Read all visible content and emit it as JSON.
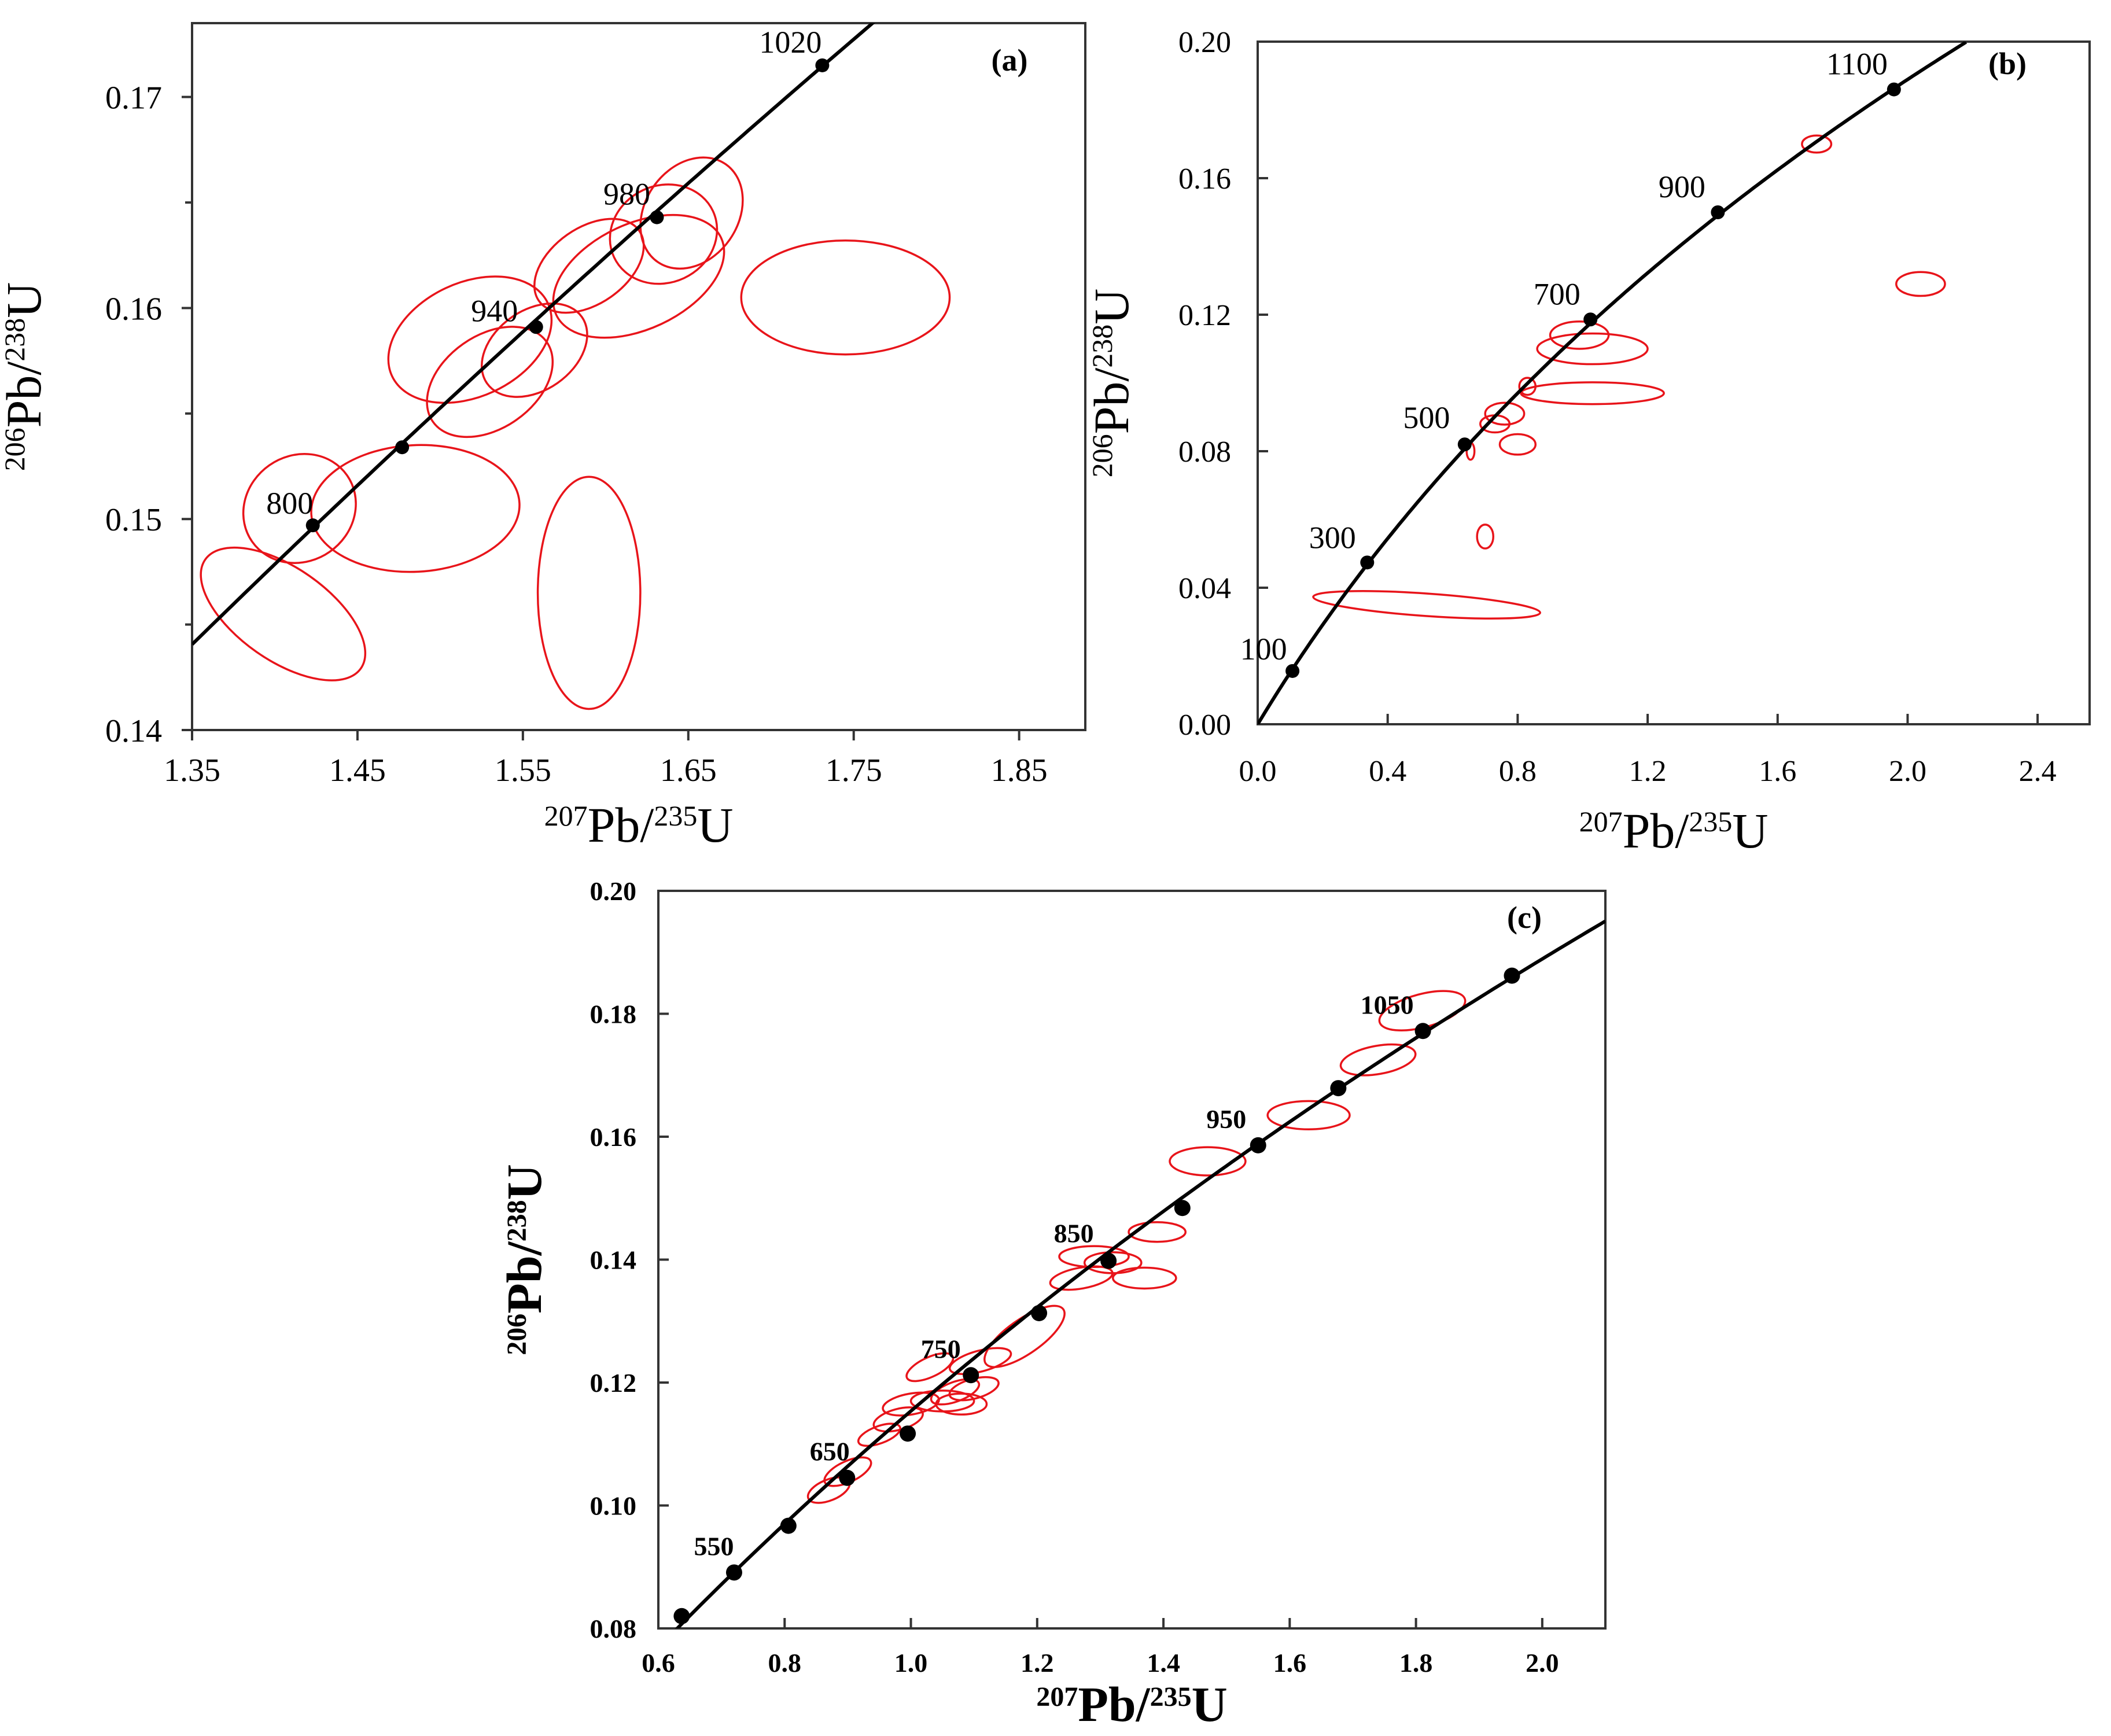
{
  "figure": {
    "panel_labels": [
      "(a)",
      "(b)",
      "(c)"
    ]
  },
  "colors": {
    "ellipse": "#e8141a",
    "concordia": "#000000",
    "axis": "#333333"
  },
  "chart_data": [
    {
      "type": "scatter",
      "panel_label": "(a)",
      "title": "",
      "xlabel": {
        "sup1": "207",
        "base1": "Pb/",
        "sup2": "235",
        "base2": "U"
      },
      "ylabel": {
        "sup1": "206",
        "base1": "Pb/",
        "sup2": "238",
        "base2": "U"
      },
      "xlim": [
        1.35,
        1.89
      ],
      "ylim": [
        0.14,
        0.1735
      ],
      "x_ticks": [
        1.35,
        1.45,
        1.55,
        1.65,
        1.75,
        1.85
      ],
      "x_tick_labels": [
        "1.35",
        "1.45",
        "1.55",
        "1.65",
        "1.75",
        "1.85"
      ],
      "y_ticks": [
        0.14,
        0.15,
        0.16,
        0.17
      ],
      "y_tick_labels": [
        "0.14",
        "0.15",
        "0.16",
        "0.17"
      ],
      "minor_y_ticks": [
        0.145,
        0.155,
        0.165
      ],
      "concordia_range_x": [
        1.35,
        1.78
      ],
      "age_markers": [
        {
          "x": 1.423,
          "y": 0.1497,
          "label": "800"
        },
        {
          "x": 1.477,
          "y": 0.1534,
          "label": ""
        },
        {
          "x": 1.558,
          "y": 0.1591,
          "label": "940"
        },
        {
          "x": 1.631,
          "y": 0.1643,
          "label": "980"
        },
        {
          "x": 1.731,
          "y": 0.1715,
          "label": "1020"
        }
      ],
      "ellipses": [
        {
          "cx": 1.415,
          "cy": 0.1505,
          "rx": 0.035,
          "ry": 0.0025,
          "angle_deg": 35
        },
        {
          "cx": 1.405,
          "cy": 0.1455,
          "rx": 0.028,
          "ry": 0.0045,
          "angle_deg": 55
        },
        {
          "cx": 1.485,
          "cy": 0.1505,
          "rx": 0.063,
          "ry": 0.003,
          "angle_deg": 3
        },
        {
          "cx": 1.59,
          "cy": 0.1465,
          "rx": 0.031,
          "ry": 0.0055,
          "angle_deg": 0
        },
        {
          "cx": 1.518,
          "cy": 0.1585,
          "rx": 0.052,
          "ry": 0.0027,
          "angle_deg": 25
        },
        {
          "cx": 1.53,
          "cy": 0.1565,
          "rx": 0.042,
          "ry": 0.0022,
          "angle_deg": 35
        },
        {
          "cx": 1.557,
          "cy": 0.158,
          "rx": 0.035,
          "ry": 0.0019,
          "angle_deg": 35
        },
        {
          "cx": 1.59,
          "cy": 0.162,
          "rx": 0.037,
          "ry": 0.0018,
          "angle_deg": 35
        },
        {
          "cx": 1.62,
          "cy": 0.1615,
          "rx": 0.055,
          "ry": 0.0025,
          "angle_deg": 25
        },
        {
          "cx": 1.635,
          "cy": 0.1635,
          "rx": 0.033,
          "ry": 0.0023,
          "angle_deg": 25
        },
        {
          "cx": 1.652,
          "cy": 0.1645,
          "rx": 0.036,
          "ry": 0.0022,
          "angle_deg": 55
        },
        {
          "cx": 1.745,
          "cy": 0.1605,
          "rx": 0.063,
          "ry": 0.0027,
          "angle_deg": 0
        }
      ]
    },
    {
      "type": "scatter",
      "panel_label": "(b)",
      "title": "",
      "xlabel": {
        "sup1": "207",
        "base1": "Pb/",
        "sup2": "235",
        "base2": "U"
      },
      "ylabel": {
        "sup1": "206",
        "base1": "Pb/",
        "sup2": "238",
        "base2": "U"
      },
      "xlim": [
        0.0,
        2.56
      ],
      "ylim": [
        0.0,
        0.2
      ],
      "x_ticks": [
        0.0,
        0.4,
        0.8,
        1.2,
        1.6,
        2.0,
        2.4
      ],
      "x_tick_labels": [
        "0.0",
        "0.4",
        "0.8",
        "1.2",
        "1.6",
        "2.0",
        "2.4"
      ],
      "y_ticks": [
        0.0,
        0.04,
        0.08,
        0.12,
        0.16,
        0.2
      ],
      "y_tick_labels": [
        "0.00",
        "0.04",
        "0.08",
        "0.12",
        "0.16",
        "0.20"
      ],
      "concordia_range_x": [
        0.0,
        2.18
      ],
      "age_markers": [
        {
          "x": 0.107,
          "y": 0.0156,
          "label": "100"
        },
        {
          "x": 0.337,
          "y": 0.0474,
          "label": "300"
        },
        {
          "x": 0.637,
          "y": 0.082,
          "label": "500"
        },
        {
          "x": 1.024,
          "y": 0.1186,
          "label": "700"
        },
        {
          "x": 1.416,
          "y": 0.15,
          "label": "900"
        },
        {
          "x": 1.958,
          "y": 0.186,
          "label": "1100"
        }
      ],
      "ellipses": [
        {
          "cx": 0.52,
          "cy": 0.035,
          "rx": 0.35,
          "ry": 0.0033,
          "angle_deg": -4
        },
        {
          "cx": 0.7,
          "cy": 0.055,
          "rx": 0.025,
          "ry": 0.0035,
          "angle_deg": 0
        },
        {
          "cx": 0.655,
          "cy": 0.08,
          "rx": 0.012,
          "ry": 0.0025,
          "angle_deg": 0
        },
        {
          "cx": 0.8,
          "cy": 0.082,
          "rx": 0.055,
          "ry": 0.003,
          "angle_deg": 0
        },
        {
          "cx": 0.73,
          "cy": 0.088,
          "rx": 0.045,
          "ry": 0.0025,
          "angle_deg": 0
        },
        {
          "cx": 0.76,
          "cy": 0.091,
          "rx": 0.06,
          "ry": 0.0032,
          "angle_deg": 0
        },
        {
          "cx": 0.83,
          "cy": 0.099,
          "rx": 0.025,
          "ry": 0.0025,
          "angle_deg": 0
        },
        {
          "cx": 1.03,
          "cy": 0.097,
          "rx": 0.22,
          "ry": 0.0032,
          "angle_deg": 0
        },
        {
          "cx": 1.03,
          "cy": 0.11,
          "rx": 0.17,
          "ry": 0.0045,
          "angle_deg": 0
        },
        {
          "cx": 0.99,
          "cy": 0.114,
          "rx": 0.09,
          "ry": 0.004,
          "angle_deg": 0
        },
        {
          "cx": 1.72,
          "cy": 0.17,
          "rx": 0.045,
          "ry": 0.0025,
          "angle_deg": 0
        },
        {
          "cx": 2.04,
          "cy": 0.129,
          "rx": 0.075,
          "ry": 0.0035,
          "angle_deg": 0
        }
      ]
    },
    {
      "type": "scatter",
      "panel_label": "(c)",
      "title": "",
      "xlabel": {
        "sup1": "207",
        "base1": "Pb/",
        "sup2": "235",
        "base2": "U"
      },
      "ylabel": {
        "sup1": "206",
        "base1": "Pb/",
        "sup2": "238",
        "base2": "U"
      },
      "xlim": [
        0.6,
        2.1
      ],
      "ylim": [
        0.08,
        0.2
      ],
      "x_ticks": [
        0.6,
        0.8,
        1.0,
        1.2,
        1.4,
        1.6,
        1.8,
        2.0
      ],
      "x_tick_labels": [
        "0.6",
        "0.8",
        "1.0",
        "1.2",
        "1.4",
        "1.6",
        "1.8",
        "2.0"
      ],
      "y_ticks": [
        0.08,
        0.1,
        0.12,
        0.14,
        0.16,
        0.18,
        0.2
      ],
      "y_tick_labels": [
        "0.08",
        "0.10",
        "0.12",
        "0.14",
        "0.16",
        "0.18",
        "0.20"
      ],
      "concordia_range_x": [
        0.6,
        2.1
      ],
      "age_markers": [
        {
          "x": 0.637,
          "y": 0.082,
          "label": ""
        },
        {
          "x": 0.72,
          "y": 0.0891,
          "label": "550"
        },
        {
          "x": 0.806,
          "y": 0.0967,
          "label": ""
        },
        {
          "x": 0.899,
          "y": 0.1045,
          "label": "650"
        },
        {
          "x": 0.995,
          "y": 0.1117,
          "label": ""
        },
        {
          "x": 1.095,
          "y": 0.1212,
          "label": "750"
        },
        {
          "x": 1.203,
          "y": 0.1313,
          "label": ""
        },
        {
          "x": 1.313,
          "y": 0.1398,
          "label": "850"
        },
        {
          "x": 1.43,
          "y": 0.1484,
          "label": ""
        },
        {
          "x": 1.55,
          "y": 0.1586,
          "label": "950"
        },
        {
          "x": 1.677,
          "y": 0.1679,
          "label": ""
        },
        {
          "x": 1.811,
          "y": 0.1772,
          "label": "1050"
        },
        {
          "x": 1.952,
          "y": 0.1862,
          "label": ""
        }
      ],
      "ellipses": [
        {
          "cx": 0.87,
          "cy": 0.1025,
          "rx": 0.035,
          "ry": 0.0017,
          "angle_deg": 22
        },
        {
          "cx": 0.9,
          "cy": 0.1055,
          "rx": 0.04,
          "ry": 0.0017,
          "angle_deg": 25
        },
        {
          "cx": 0.95,
          "cy": 0.1115,
          "rx": 0.035,
          "ry": 0.0014,
          "angle_deg": 20
        },
        {
          "cx": 0.98,
          "cy": 0.114,
          "rx": 0.04,
          "ry": 0.0017,
          "angle_deg": 15
        },
        {
          "cx": 1.0,
          "cy": 0.1165,
          "rx": 0.045,
          "ry": 0.0017,
          "angle_deg": 10
        },
        {
          "cx": 1.05,
          "cy": 0.117,
          "rx": 0.05,
          "ry": 0.0017,
          "angle_deg": 0
        },
        {
          "cx": 1.07,
          "cy": 0.1185,
          "rx": 0.04,
          "ry": 0.0016,
          "angle_deg": 20
        },
        {
          "cx": 1.08,
          "cy": 0.1165,
          "rx": 0.04,
          "ry": 0.0017,
          "angle_deg": 0
        },
        {
          "cx": 1.1,
          "cy": 0.119,
          "rx": 0.04,
          "ry": 0.0016,
          "angle_deg": 15
        },
        {
          "cx": 1.03,
          "cy": 0.1225,
          "rx": 0.04,
          "ry": 0.0016,
          "angle_deg": 25
        },
        {
          "cx": 1.11,
          "cy": 0.1235,
          "rx": 0.05,
          "ry": 0.0017,
          "angle_deg": 15
        },
        {
          "cx": 1.18,
          "cy": 0.1275,
          "rx": 0.075,
          "ry": 0.0028,
          "angle_deg": 35
        },
        {
          "cx": 1.29,
          "cy": 0.1405,
          "rx": 0.055,
          "ry": 0.0017,
          "angle_deg": 0
        },
        {
          "cx": 1.27,
          "cy": 0.137,
          "rx": 0.05,
          "ry": 0.0017,
          "angle_deg": 10
        },
        {
          "cx": 1.32,
          "cy": 0.1395,
          "rx": 0.045,
          "ry": 0.0017,
          "angle_deg": 0
        },
        {
          "cx": 1.37,
          "cy": 0.137,
          "rx": 0.05,
          "ry": 0.0017,
          "angle_deg": 0
        },
        {
          "cx": 1.39,
          "cy": 0.1445,
          "rx": 0.045,
          "ry": 0.0016,
          "angle_deg": 0
        },
        {
          "cx": 1.47,
          "cy": 0.156,
          "rx": 0.06,
          "ry": 0.0023,
          "angle_deg": 0
        },
        {
          "cx": 1.63,
          "cy": 0.1635,
          "rx": 0.065,
          "ry": 0.0023,
          "angle_deg": 0
        },
        {
          "cx": 1.74,
          "cy": 0.1725,
          "rx": 0.06,
          "ry": 0.0023,
          "angle_deg": 10
        },
        {
          "cx": 1.81,
          "cy": 0.1805,
          "rx": 0.07,
          "ry": 0.0027,
          "angle_deg": 15
        }
      ]
    }
  ]
}
